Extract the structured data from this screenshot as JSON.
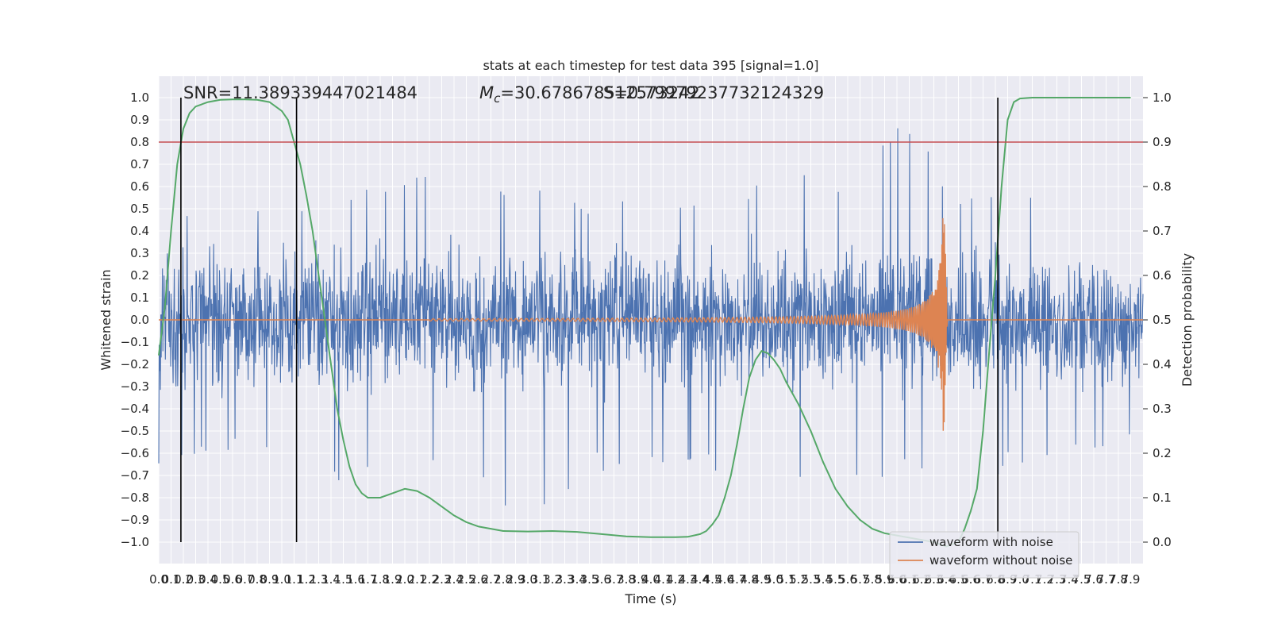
{
  "chart_data": {
    "type": "line",
    "title": "stats at each timestep for test data 395 [signal=1.0]",
    "xlabel": "Time (s)",
    "ylabel": "Whitened strain",
    "ylabel_right": "Detection probability",
    "xlim": [
      0.0,
      8.0
    ],
    "ylim": [
      -1.1,
      1.1
    ],
    "ylim_right": [
      -0.05,
      1.03
    ],
    "x_ticks": [
      0.0,
      0.1,
      0.2,
      0.3,
      0.4,
      0.5,
      0.6,
      0.7,
      0.8,
      0.9,
      1.0,
      1.1,
      1.2,
      1.3,
      1.4,
      1.5,
      1.6,
      1.7,
      1.8,
      1.9,
      2.0,
      2.1,
      2.2,
      2.3,
      2.4,
      2.5,
      2.6,
      2.7,
      2.8,
      2.9,
      3.0,
      3.1,
      3.2,
      3.3,
      3.4,
      3.5,
      3.6,
      3.7,
      3.8,
      3.9,
      4.0,
      4.1,
      4.2,
      4.3,
      4.4,
      4.5,
      4.6,
      4.7,
      4.8,
      4.9,
      5.0,
      5.1,
      5.2,
      5.3,
      5.4,
      5.5,
      5.6,
      5.7,
      5.8,
      5.9,
      6.0,
      6.1,
      6.2,
      6.3,
      6.4,
      6.5,
      6.6,
      6.7,
      6.8,
      6.9,
      7.0,
      7.1,
      7.2,
      7.3,
      7.4,
      7.5,
      7.6,
      7.7,
      7.8,
      7.9
    ],
    "y_ticks": [
      "1.0",
      "0.9",
      "0.8",
      "0.7",
      "0.6",
      "0.5",
      "0.4",
      "0.3",
      "0.2",
      "0.1",
      "0.0",
      "−0.1",
      "−0.2",
      "−0.3",
      "−0.4",
      "−0.5",
      "−0.6",
      "−0.7",
      "−0.8",
      "−0.9",
      "−1.0"
    ],
    "y_tick_values": [
      1.0,
      0.9,
      0.8,
      0.7,
      0.6,
      0.5,
      0.4,
      0.3,
      0.2,
      0.1,
      0.0,
      -0.1,
      -0.2,
      -0.3,
      -0.4,
      -0.5,
      -0.6,
      -0.7,
      -0.8,
      -0.9,
      -1.0
    ],
    "y_ticks_right": [
      "1.0",
      "0.9",
      "0.8",
      "0.7",
      "0.6",
      "0.5",
      "0.4",
      "0.3",
      "0.2",
      "0.1",
      "0.0"
    ],
    "y_tick_values_right": [
      1.0,
      0.9,
      0.8,
      0.7,
      0.6,
      0.5,
      0.4,
      0.3,
      0.2,
      0.1,
      0.0
    ],
    "grid": true,
    "legend_position": "lower-right",
    "annotations": {
      "snr": "SNR=11.389339447021484",
      "mc": "M_c=30.678678512573242",
      "mc_prefix": "M",
      "mc_sub": "c",
      "mc_value": "=30.678678512573242",
      "s": "S=0.7997923773212432​9"
    },
    "threshold": 0.8,
    "vertical_lines_x": [
      0.18,
      1.12,
      6.82
    ],
    "series": [
      {
        "name": "waveform with noise",
        "color": "#4c72b0",
        "description_values": "noise envelope approx ±0.4 with spikes up to ±1.0",
        "envelope_x": [
          0.0,
          0.5,
          1.0,
          1.5,
          2.0,
          2.5,
          3.0,
          3.5,
          4.0,
          4.5,
          5.0,
          5.5,
          6.0,
          6.5,
          7.0,
          7.5,
          7.95
        ],
        "envelope_upper": [
          0.45,
          0.6,
          0.55,
          0.55,
          0.7,
          0.55,
          0.65,
          0.55,
          0.6,
          0.55,
          0.7,
          0.6,
          0.95,
          0.6,
          0.55,
          0.6,
          0.6
        ],
        "envelope_lower": [
          -0.65,
          -0.6,
          -0.6,
          -0.75,
          -0.8,
          -0.65,
          -0.95,
          -0.7,
          -0.65,
          -0.7,
          -0.65,
          -0.8,
          -0.7,
          -0.8,
          -0.65,
          -0.65,
          -0.55
        ]
      },
      {
        "name": "waveform without noise",
        "color": "#dd8452",
        "chirp_start": 2.2,
        "chirp_peak": 6.38,
        "chirp_peak_amplitude": 0.62
      },
      {
        "name": "detection probability",
        "color": "#55a868",
        "axis": "right",
        "x": [
          0.0,
          0.05,
          0.1,
          0.15,
          0.2,
          0.25,
          0.3,
          0.4,
          0.5,
          0.6,
          0.7,
          0.8,
          0.9,
          1.0,
          1.05,
          1.1,
          1.15,
          1.2,
          1.25,
          1.3,
          1.35,
          1.4,
          1.45,
          1.5,
          1.55,
          1.6,
          1.65,
          1.7,
          1.8,
          1.9,
          2.0,
          2.1,
          2.2,
          2.3,
          2.4,
          2.5,
          2.6,
          2.8,
          3.0,
          3.2,
          3.4,
          3.6,
          3.8,
          4.0,
          4.2,
          4.3,
          4.4,
          4.45,
          4.5,
          4.55,
          4.6,
          4.65,
          4.7,
          4.75,
          4.8,
          4.85,
          4.9,
          4.95,
          5.0,
          5.05,
          5.1,
          5.2,
          5.3,
          5.4,
          5.5,
          5.6,
          5.7,
          5.8,
          5.9,
          6.0,
          6.1,
          6.2,
          6.3,
          6.4,
          6.5,
          6.55,
          6.6,
          6.65,
          6.7,
          6.75,
          6.8,
          6.85,
          6.9,
          6.95,
          7.0,
          7.1,
          7.2,
          7.5,
          7.9
        ],
        "y": [
          0.42,
          0.53,
          0.7,
          0.85,
          0.93,
          0.965,
          0.98,
          0.99,
          0.995,
          0.996,
          0.996,
          0.995,
          0.99,
          0.97,
          0.95,
          0.9,
          0.85,
          0.78,
          0.7,
          0.6,
          0.5,
          0.4,
          0.3,
          0.23,
          0.17,
          0.13,
          0.11,
          0.1,
          0.1,
          0.11,
          0.12,
          0.115,
          0.1,
          0.08,
          0.06,
          0.045,
          0.035,
          0.025,
          0.024,
          0.025,
          0.023,
          0.018,
          0.013,
          0.011,
          0.011,
          0.012,
          0.018,
          0.025,
          0.04,
          0.06,
          0.1,
          0.15,
          0.22,
          0.3,
          0.37,
          0.41,
          0.43,
          0.425,
          0.41,
          0.39,
          0.36,
          0.31,
          0.25,
          0.18,
          0.12,
          0.08,
          0.05,
          0.03,
          0.02,
          0.015,
          0.01,
          0.005,
          0.0,
          -0.01,
          0.0,
          0.03,
          0.07,
          0.12,
          0.25,
          0.43,
          0.6,
          0.8,
          0.95,
          0.99,
          0.998,
          1.0,
          1.0,
          1.0,
          1.0
        ]
      }
    ]
  }
}
